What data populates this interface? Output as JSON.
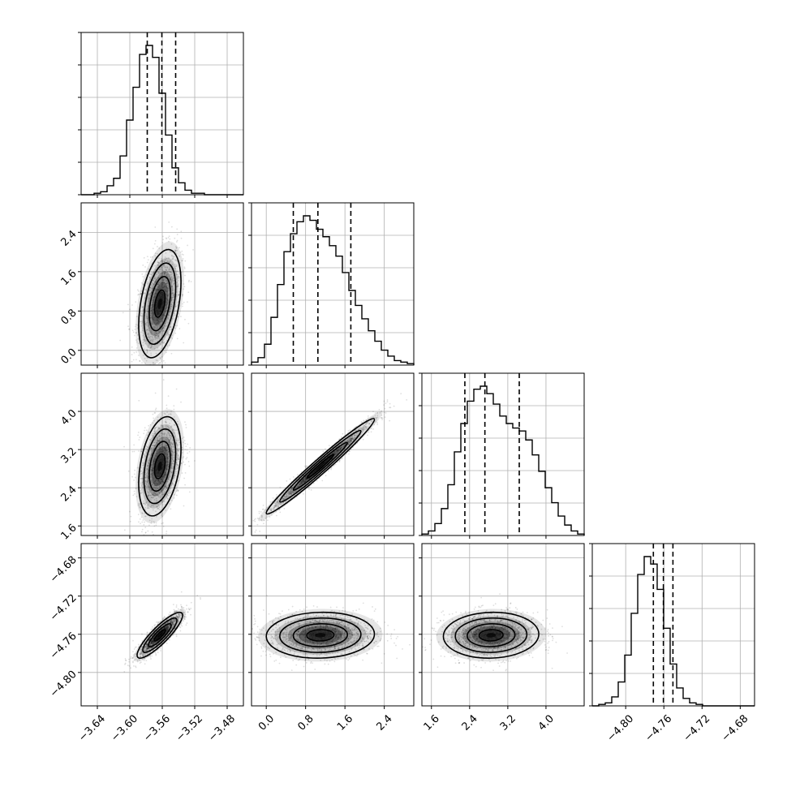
{
  "chart_data": {
    "type": "corner",
    "title": "",
    "parameter_labels": [
      "",
      "",
      "",
      ""
    ],
    "grid": true,
    "ranges": [
      [
        -3.66,
        -3.46
      ],
      [
        -0.3,
        3.0
      ],
      [
        1.4,
        4.8
      ],
      [
        -4.835,
        -4.665
      ]
    ],
    "ticks": [
      [
        "−3.64",
        "−3.60",
        "−3.56",
        "−3.52",
        "−3.48"
      ],
      [
        "0.0",
        "0.8",
        "1.6",
        "2.4"
      ],
      [
        "1.6",
        "2.4",
        "3.2",
        "4.0"
      ],
      [
        "−4.80",
        "−4.76",
        "−4.72",
        "−4.68"
      ]
    ],
    "tick_values": [
      [
        -3.64,
        -3.6,
        -3.56,
        -3.52,
        -3.48
      ],
      [
        0.0,
        0.8,
        1.6,
        2.4
      ],
      [
        1.6,
        2.4,
        3.2,
        4.0
      ],
      [
        -4.8,
        -4.76,
        -4.72,
        -4.68
      ]
    ],
    "quantiles": [
      [
        -3.5785,
        -3.5605,
        -3.5435
      ],
      [
        0.55,
        1.05,
        1.72
      ],
      [
        2.3,
        2.72,
        3.44
      ],
      [
        -4.771,
        -4.7605,
        -4.7505
      ]
    ],
    "histograms": [
      {
        "bins": [
          -3.66,
          -3.46
        ],
        "counts": [
          0,
          0,
          1,
          2,
          6,
          11,
          26,
          50,
          72,
          94,
          100,
          92,
          68,
          40,
          18,
          8,
          3,
          1,
          1,
          0,
          0,
          0,
          0,
          0,
          0
        ]
      },
      {
        "bins": [
          -0.3,
          3.0
        ],
        "counts": [
          2,
          5,
          14,
          32,
          54,
          76,
          88,
          96,
          100,
          97,
          91,
          86,
          80,
          73,
          62,
          50,
          40,
          31,
          23,
          16,
          10,
          6,
          3,
          2,
          1
        ]
      },
      {
        "bins": [
          1.4,
          4.8
        ],
        "counts": [
          1,
          3,
          8,
          18,
          34,
          56,
          75,
          90,
          98,
          100,
          95,
          88,
          80,
          75,
          72,
          70,
          64,
          54,
          43,
          32,
          22,
          13,
          7,
          3,
          1
        ]
      },
      {
        "bins": [
          -4.835,
          -4.665
        ],
        "counts": [
          0,
          1,
          2,
          6,
          16,
          34,
          62,
          88,
          100,
          95,
          78,
          52,
          28,
          12,
          5,
          2,
          1,
          0,
          0,
          0,
          0,
          0,
          0,
          0,
          0
        ]
      }
    ],
    "pairs": [
      {
        "x": 0,
        "y": 1,
        "center": [
          -3.563,
          0.95
        ],
        "sd": [
          0.013,
          0.55
        ],
        "corr": 0.4
      },
      {
        "x": 0,
        "y": 2,
        "center": [
          -3.563,
          2.85
        ],
        "sd": [
          0.013,
          0.52
        ],
        "corr": 0.35
      },
      {
        "x": 1,
        "y": 2,
        "center": [
          1.1,
          2.85
        ],
        "sd": [
          0.55,
          0.5
        ],
        "corr": 0.98
      },
      {
        "x": 0,
        "y": 3,
        "center": [
          -3.563,
          -4.761
        ],
        "sd": [
          0.014,
          0.012
        ],
        "corr": 0.87
      },
      {
        "x": 1,
        "y": 3,
        "center": [
          1.1,
          -4.761
        ],
        "sd": [
          0.55,
          0.012
        ],
        "corr": 0.05
      },
      {
        "x": 2,
        "y": 3,
        "center": [
          2.85,
          -4.761
        ],
        "sd": [
          0.5,
          0.012
        ],
        "corr": 0.05
      }
    ],
    "contour_levels_sigma": [
      0.5,
      1.0,
      1.5,
      2.0
    ]
  }
}
